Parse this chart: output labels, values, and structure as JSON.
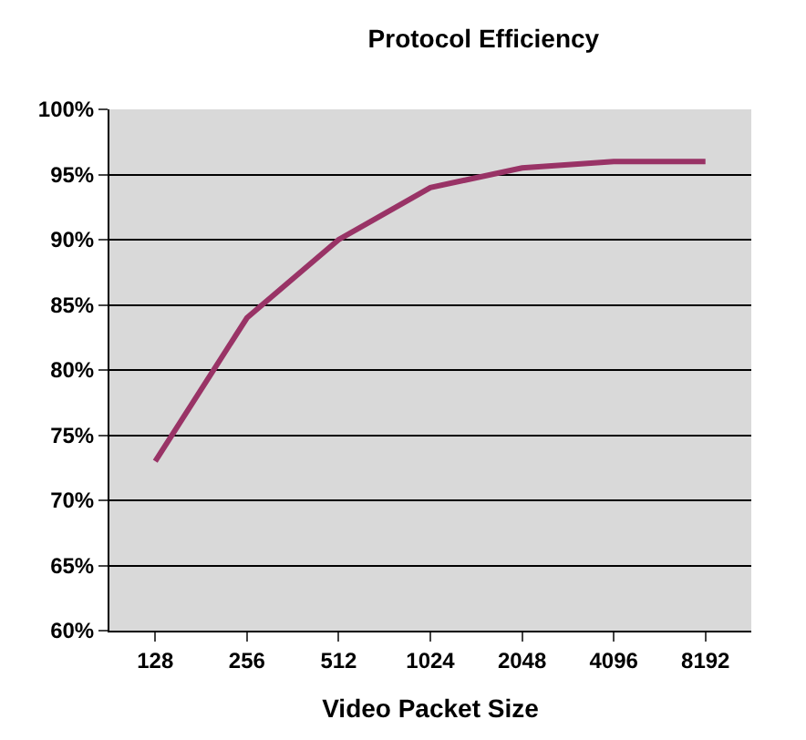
{
  "chart_data": {
    "type": "line",
    "title": "Protocol Efficiency",
    "xlabel": "Video Packet Size",
    "categories": [
      "128",
      "256",
      "512",
      "1024",
      "2048",
      "4096",
      "8192"
    ],
    "series": [
      {
        "color": "#993366",
        "values": [
          73,
          84,
          90,
          94,
          95.5,
          96,
          96
        ]
      }
    ],
    "ylim": [
      60,
      100
    ],
    "yticks": [
      {
        "value": 60,
        "label": "60%"
      },
      {
        "value": 65,
        "label": "65%"
      },
      {
        "value": 70,
        "label": "70%"
      },
      {
        "value": 75,
        "label": "75%"
      },
      {
        "value": 80,
        "label": "80%"
      },
      {
        "value": 85,
        "label": "85%"
      },
      {
        "value": 90,
        "label": "90%"
      },
      {
        "value": 95,
        "label": "95%"
      },
      {
        "value": 100,
        "label": "100%"
      }
    ],
    "grid": "y",
    "marker": "none",
    "line_style": "solid"
  }
}
